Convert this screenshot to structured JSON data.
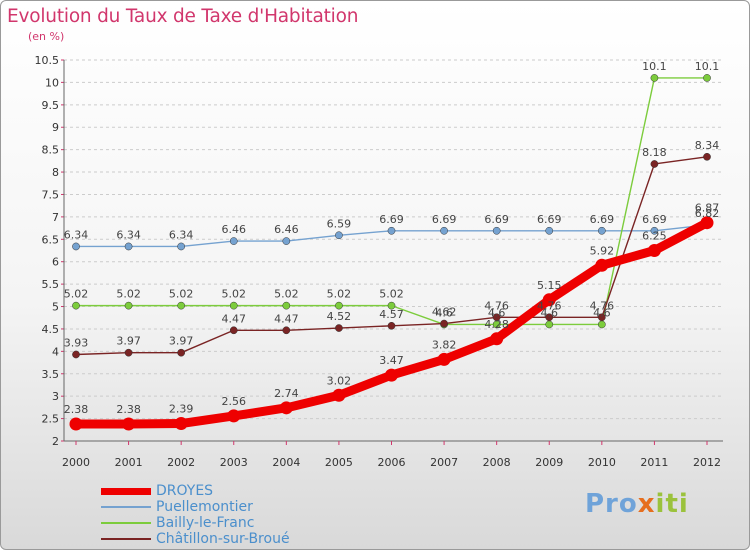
{
  "title": "Evolution du Taux de Taxe d'Habitation",
  "subtitle": "(en %)",
  "brand": "Proxiti",
  "colors": {
    "title": "#d1366c",
    "legend_text": "#4b8fcc",
    "axis": "#666666",
    "grid": "#cccccc",
    "tick_marks": "#d1366c"
  },
  "chart_data": {
    "type": "line",
    "title": "Evolution du Taux de Taxe d'Habitation",
    "subtitle": "(en %)",
    "x": [
      "2000",
      "2001",
      "2002",
      "2003",
      "2004",
      "2005",
      "2006",
      "2007",
      "2008",
      "2009",
      "2010",
      "2011",
      "2012"
    ],
    "ylim": [
      2,
      10.5
    ],
    "yticks": [
      "2",
      "2.5",
      "3",
      "3.5",
      "4",
      "4.5",
      "5",
      "5.5",
      "6",
      "6.5",
      "7",
      "7.5",
      "8",
      "8.5",
      "9",
      "9.5",
      "10",
      "10.5"
    ],
    "grid": "horizontal dashed",
    "legend_position": "bottom-left",
    "series": [
      {
        "name": "DROYES",
        "color": "#ee0000",
        "values": [
          2.38,
          2.38,
          2.39,
          2.56,
          2.74,
          3.02,
          3.47,
          3.82,
          4.28,
          5.15,
          5.92,
          6.25,
          6.87
        ],
        "labels": [
          "2.38",
          "2.38",
          "2.39",
          "2.56",
          "2.74",
          "3.02",
          "3.47",
          "3.82",
          "4.28",
          "5.15",
          "5.92",
          "6.25",
          "6.87"
        ]
      },
      {
        "name": "Puellemontier",
        "color": "#75a2d0",
        "values": [
          6.34,
          6.34,
          6.34,
          6.46,
          6.46,
          6.59,
          6.69,
          6.69,
          6.69,
          6.69,
          6.69,
          6.69,
          6.82
        ],
        "labels": [
          "6.34",
          "6.34",
          "6.34",
          "6.46",
          "6.46",
          "6.59",
          "6.69",
          "6.69",
          "6.69",
          "6.69",
          "6.69",
          "6.69",
          "6.82"
        ]
      },
      {
        "name": "Bailly-le-Franc",
        "color": "#7ccc3c",
        "values": [
          5.02,
          5.02,
          5.02,
          5.02,
          5.02,
          5.02,
          5.02,
          4.6,
          4.6,
          4.6,
          4.6,
          10.1,
          10.1
        ],
        "labels": [
          "5.02",
          "5.02",
          "5.02",
          "5.02",
          "5.02",
          "5.02",
          "5.02",
          "4.6",
          "4.6",
          "4.6",
          "4.6",
          "10.1",
          "10.1"
        ]
      },
      {
        "name": "Châtillon-sur-Broué",
        "color": "#7a2424",
        "values": [
          3.93,
          3.97,
          3.97,
          4.47,
          4.47,
          4.52,
          4.57,
          4.62,
          4.76,
          4.76,
          4.76,
          8.18,
          8.34
        ],
        "labels": [
          "3.93",
          "3.97",
          "3.97",
          "4.47",
          "4.47",
          "4.52",
          "4.57",
          "4.62",
          "4.76",
          "4.76",
          "4.76",
          "8.18",
          "8.34"
        ]
      }
    ]
  }
}
